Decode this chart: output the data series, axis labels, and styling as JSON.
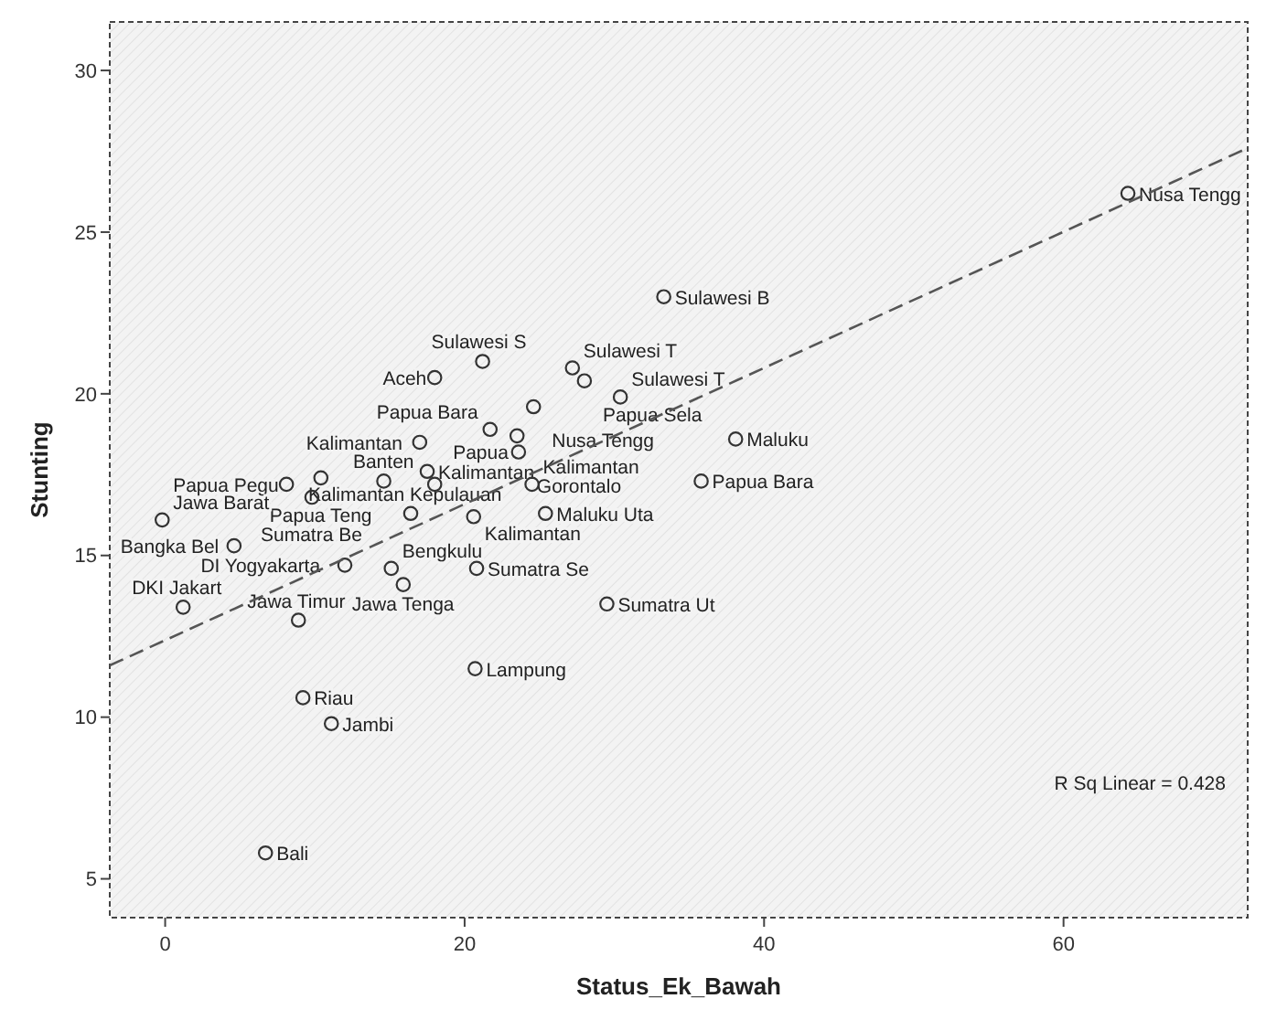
{
  "chart_data": {
    "type": "scatter",
    "xlabel": "Status_Ek_Bawah",
    "ylabel": "Stunting",
    "xlim": [
      -3.7,
      72.3
    ],
    "ylim": [
      3.8,
      31.5
    ],
    "xticks": [
      0,
      20,
      40,
      60
    ],
    "yticks": [
      5,
      10,
      15,
      20,
      25,
      30
    ],
    "grid": false,
    "series": [
      {
        "color": "#333333",
        "marker": "circle",
        "x": [
          18.0,
          21.2,
          21.7,
          17.0,
          17.5,
          18.0,
          8.1,
          10.4,
          9.8,
          14.6,
          16.4,
          20.6,
          4.6,
          12.0,
          15.1,
          15.9,
          20.8,
          1.2,
          8.9,
          9.2,
          11.1,
          6.7,
          20.7,
          29.5,
          33.3,
          27.2,
          28.0,
          30.4,
          24.6,
          23.5,
          23.6,
          24.5,
          25.4,
          38.1,
          35.8,
          64.3,
          -0.2
        ],
        "values": [
          20.5,
          21.0,
          18.9,
          18.5,
          17.6,
          17.2,
          17.2,
          17.4,
          16.8,
          17.3,
          16.3,
          16.2,
          15.3,
          14.7,
          14.6,
          14.1,
          14.6,
          13.4,
          13.0,
          10.6,
          9.8,
          5.8,
          11.5,
          13.5,
          23.0,
          20.8,
          20.4,
          19.9,
          19.6,
          18.7,
          18.2,
          17.2,
          16.3,
          18.6,
          17.3,
          26.2,
          16.1
        ]
      },
      {
        "type": "line",
        "color": "#555555",
        "line_style": "dashed",
        "x": [
          -3.7,
          72.3
        ],
        "values": [
          11.6,
          27.6
        ]
      }
    ],
    "annotations": [
      {
        "text": "Nusa Tengg",
        "x": 64.3,
        "y": 26.2
      },
      {
        "text": "Sulawesi B",
        "x": 33.3,
        "y": 23.0
      },
      {
        "text": "Aceh",
        "x": 18.0,
        "y": 20.5
      },
      {
        "text": "Sulawesi S",
        "x": 21.2,
        "y": 21.0
      },
      {
        "text": "Sulawesi T",
        "x": 27.2,
        "y": 20.8
      },
      {
        "text": "Papua Sela",
        "x": 28.0,
        "y": 20.4
      },
      {
        "text": "Sulawesi T",
        "x": 30.4,
        "y": 19.9
      },
      {
        "text": "Maluku",
        "x": 38.1,
        "y": 18.6
      },
      {
        "text": "Kalimantan",
        "x": 17.0,
        "y": 18.5
      },
      {
        "text": "Papua Bara",
        "x": 21.7,
        "y": 18.9
      },
      {
        "text": "Nusa Tengg",
        "x": 24.6,
        "y": 19.6
      },
      {
        "text": "Papua Teng",
        "x": 10.4,
        "y": 17.4
      },
      {
        "text": "Kalimantan",
        "x": 17.5,
        "y": 17.6
      },
      {
        "text": "Gorontalo",
        "x": 23.6,
        "y": 18.2
      },
      {
        "text": "Banten",
        "x": 14.6,
        "y": 17.3
      },
      {
        "text": "Sumatra Be",
        "x": 9.8,
        "y": 16.8
      },
      {
        "text": "Papua",
        "x": 18.0,
        "y": 17.2
      },
      {
        "text": "Kalimantan",
        "x": 24.5,
        "y": 17.2
      },
      {
        "text": "Papua Bara",
        "x": 35.8,
        "y": 17.3
      },
      {
        "text": "Papua Pegu",
        "x": 8.1,
        "y": 17.2
      },
      {
        "text": "Maluku Uta",
        "x": 25.4,
        "y": 16.3
      },
      {
        "text": "Jawa Barat",
        "x": -0.2,
        "y": 16.1
      },
      {
        "text": "Bangka Bel",
        "x": 4.6,
        "y": 15.3
      },
      {
        "text": "Jawa Tenga",
        "x": 15.9,
        "y": 14.1
      },
      {
        "text": "Bengkulu",
        "x": 15.1,
        "y": 14.6
      },
      {
        "text": "Kalimantan",
        "x": 20.6,
        "y": 16.2
      },
      {
        "text": "DKI Jakart",
        "x": 1.2,
        "y": 13.4
      },
      {
        "text": "DI Yogyakarta",
        "x": 12.0,
        "y": 14.7
      },
      {
        "text": "Sumatra Se",
        "x": 20.8,
        "y": 14.6
      },
      {
        "text": "Sumatra Ut",
        "x": 29.5,
        "y": 13.5
      },
      {
        "text": "Jawa Timur",
        "x": 8.9,
        "y": 13.0
      },
      {
        "text": "Kalimantan Kepulauan",
        "x": 16.4,
        "y": 16.3
      },
      {
        "text": "Lampung",
        "x": 20.7,
        "y": 11.5
      },
      {
        "text": "Riau",
        "x": 9.2,
        "y": 10.6
      },
      {
        "text": "Jambi",
        "x": 11.1,
        "y": 9.8
      },
      {
        "text": "Bali",
        "x": 6.7,
        "y": 5.8
      },
      "R Sq Linear = 0.428"
    ]
  }
}
